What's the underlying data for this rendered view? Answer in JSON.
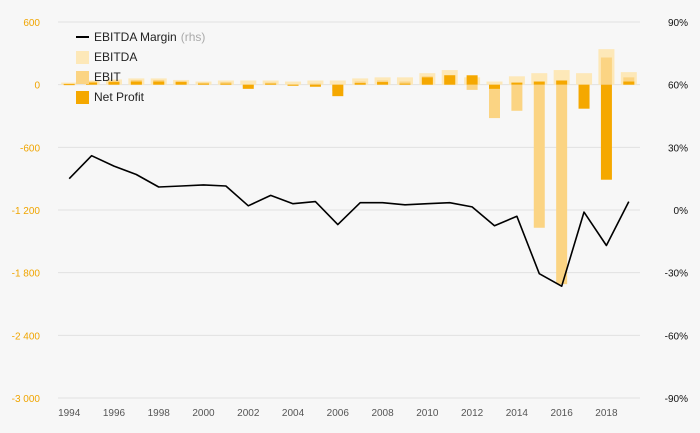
{
  "chart_data": {
    "type": "bar",
    "x": [
      1994,
      1995,
      1996,
      1997,
      1998,
      1999,
      2000,
      2001,
      2002,
      2003,
      2004,
      2005,
      2006,
      2007,
      2008,
      2009,
      2010,
      2011,
      2012,
      2013,
      2014,
      2015,
      2016,
      2017,
      2018,
      2019
    ],
    "x_tick_labels": [
      "1994",
      "1996",
      "1998",
      "2000",
      "2002",
      "2004",
      "2006",
      "2008",
      "2010",
      "2012",
      "2014",
      "2016",
      "2018"
    ],
    "y_left": {
      "ticks": [
        "600",
        "0",
        "-600",
        "-1 200",
        "-1 800",
        "-2 400",
        "-3 000"
      ],
      "ylim": [
        -3000,
        600
      ]
    },
    "y_right": {
      "ticks": [
        "90%",
        "60%",
        "30%",
        "0%",
        "-30%",
        "-60%",
        "-90%"
      ],
      "ylim": [
        -90,
        90
      ]
    },
    "series": [
      {
        "name": "EBITDA",
        "kind": "bar",
        "color": "#fde8b8",
        "values": [
          20,
          40,
          50,
          60,
          60,
          45,
          30,
          40,
          40,
          40,
          30,
          40,
          40,
          60,
          70,
          70,
          110,
          140,
          70,
          30,
          80,
          110,
          140,
          110,
          340,
          120
        ]
      },
      {
        "name": "EBIT",
        "kind": "bar",
        "color": "#fbd483",
        "values": [
          10,
          30,
          40,
          45,
          45,
          35,
          20,
          25,
          -20,
          20,
          -5,
          10,
          -60,
          30,
          40,
          30,
          80,
          90,
          -50,
          -320,
          -250,
          -1370,
          -1910,
          -30,
          260,
          70
        ]
      },
      {
        "name": "Net Profit",
        "kind": "bar",
        "color": "#f5a800",
        "values": [
          5,
          20,
          25,
          30,
          30,
          25,
          10,
          10,
          -40,
          10,
          -10,
          -20,
          -110,
          15,
          25,
          10,
          70,
          90,
          90,
          -40,
          20,
          30,
          40,
          -230,
          -910,
          30
        ]
      },
      {
        "name": "EBITDA Margin",
        "suffix": "(rhs)",
        "kind": "line",
        "axis": "right",
        "color": "#000000",
        "values": [
          15,
          26,
          21,
          17,
          11,
          11.5,
          12,
          11.5,
          2,
          7,
          3,
          4,
          -7,
          3.5,
          3.5,
          2.5,
          3,
          3.5,
          1.5,
          -7.5,
          -3,
          -30.5,
          -36.5,
          -1,
          -17,
          4
        ]
      }
    ],
    "grid": true,
    "legend_position": "top-left"
  }
}
